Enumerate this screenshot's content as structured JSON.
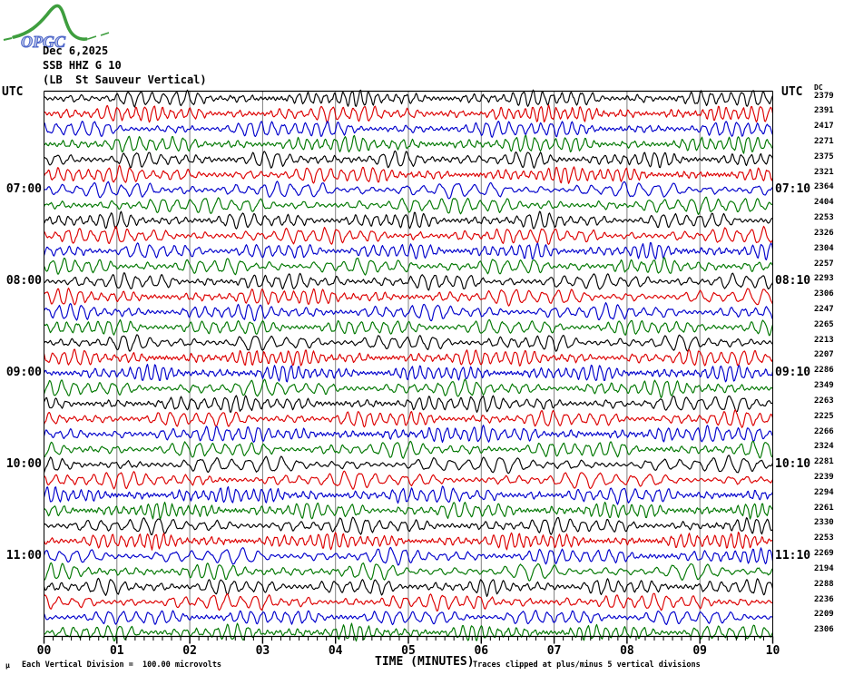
{
  "logo": {
    "name": "OPGC",
    "curve_color": "#3e9e3e",
    "text_color": "#4a63c8"
  },
  "header": {
    "date": "Dec 6,2025",
    "channel": "SSB HHZ G 10",
    "station": "(LB  St Sauveur Vertical)"
  },
  "left_axis": {
    "title": "UTC"
  },
  "right_axis": {
    "title": "UTC",
    "dc_header": "DC"
  },
  "footer": {
    "micro_mark": "μ",
    "scale_note": "Each Vertical Division =  100.00 microvolts",
    "xlabel": "TIME (MINUTES)",
    "clip_note": "Traces clipped at plus/minus 5 vertical divisions"
  },
  "chart_data": {
    "type": "line",
    "subtype": "helicorder-seismogram",
    "title": "SSB HHZ G 10",
    "station_name": "(LB  St Sauveur Vertical)",
    "date": "Dec 6,2025",
    "xlabel": "TIME (MINUTES)",
    "x_ticks": [
      "00",
      "01",
      "02",
      "03",
      "04",
      "05",
      "06",
      "07",
      "08",
      "09",
      "10"
    ],
    "x_range_minutes": [
      0,
      10
    ],
    "minutes_per_row": 10,
    "minor_ticks_per_minute": 8,
    "rows_total": 36,
    "trace_color_cycle": [
      "#000000",
      "#dd0000",
      "#0000cc",
      "#007700"
    ],
    "grid_color": "#808080",
    "hour_labels": [
      {
        "row": 6,
        "left": "07:00",
        "right": "07:10"
      },
      {
        "row": 12,
        "left": "08:00",
        "right": "08:10"
      },
      {
        "row": 18,
        "left": "09:00",
        "right": "09:10"
      },
      {
        "row": 24,
        "left": "10:00",
        "right": "10:10"
      },
      {
        "row": 30,
        "left": "11:00",
        "right": "11:10"
      }
    ],
    "row_dc_values": [
      2379,
      2391,
      2417,
      2271,
      2375,
      2321,
      2364,
      2404,
      2253,
      2326,
      2304,
      2257,
      2293,
      2306,
      2247,
      2265,
      2213,
      2207,
      2286,
      2349,
      2263,
      2225,
      2266,
      2324,
      2281,
      2239,
      2294,
      2261,
      2330,
      2253,
      2269,
      2194,
      2288,
      2236,
      2209,
      2306
    ],
    "scale_note": "Each Vertical Division =  100.00 microvolts",
    "clip_note": "Traces clipped at plus/minus 5 vertical divisions"
  }
}
